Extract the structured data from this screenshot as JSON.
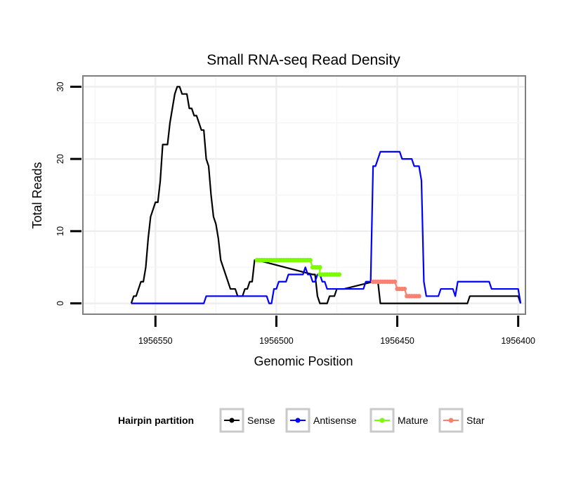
{
  "chart_data": {
    "type": "line",
    "title": "Small RNA-seq Read Density",
    "xlabel": "Genomic Position",
    "ylabel": "Total Reads",
    "xlim": [
      1956580,
      1956397
    ],
    "x_reversed": true,
    "ylim": [
      -1.5,
      31.5
    ],
    "x_ticks": [
      1956550,
      1956500,
      1956450,
      1956400
    ],
    "x_tick_labels": [
      "1956550",
      "1956500",
      "1956450",
      "1956400"
    ],
    "y_ticks": [
      0,
      10,
      20,
      30
    ],
    "y_tick_labels": [
      "0",
      "10",
      "20",
      "30"
    ],
    "grid": true,
    "legend": {
      "title": "Hairpin partition",
      "position": "bottom",
      "entries": [
        {
          "label": "Sense",
          "color": "#000000"
        },
        {
          "label": "Antisense",
          "color": "#0000ff"
        },
        {
          "label": "Mature",
          "color": "#7cfc00"
        },
        {
          "label": "Star",
          "color": "#fa8072"
        }
      ]
    },
    "series": [
      {
        "name": "Sense",
        "color": "#000000",
        "style": "line",
        "points": [
          [
            1956560,
            0
          ],
          [
            1956559,
            1
          ],
          [
            1956558,
            1
          ],
          [
            1956557,
            2
          ],
          [
            1956556,
            3
          ],
          [
            1956555,
            3
          ],
          [
            1956554,
            5
          ],
          [
            1956553,
            9
          ],
          [
            1956552,
            12
          ],
          [
            1956551,
            13
          ],
          [
            1956550,
            14
          ],
          [
            1956549,
            14
          ],
          [
            1956548,
            17
          ],
          [
            1956547,
            22
          ],
          [
            1956546,
            22
          ],
          [
            1956545,
            22
          ],
          [
            1956544,
            25
          ],
          [
            1956543,
            27
          ],
          [
            1956542,
            29
          ],
          [
            1956541,
            30
          ],
          [
            1956540,
            30
          ],
          [
            1956539,
            29
          ],
          [
            1956538,
            29
          ],
          [
            1956537,
            29
          ],
          [
            1956536,
            27
          ],
          [
            1956535,
            27
          ],
          [
            1956534,
            26
          ],
          [
            1956533,
            26
          ],
          [
            1956532,
            25
          ],
          [
            1956531,
            24
          ],
          [
            1956530,
            24
          ],
          [
            1956529,
            20
          ],
          [
            1956528,
            19
          ],
          [
            1956527,
            15
          ],
          [
            1956526,
            12
          ],
          [
            1956525,
            11
          ],
          [
            1956524,
            9
          ],
          [
            1956523,
            6
          ],
          [
            1956522,
            5
          ],
          [
            1956521,
            4
          ],
          [
            1956520,
            3
          ],
          [
            1956519,
            2
          ],
          [
            1956518,
            2
          ],
          [
            1956517,
            2
          ],
          [
            1956516,
            1
          ],
          [
            1956515,
            1
          ],
          [
            1956514,
            1
          ],
          [
            1956513,
            2
          ],
          [
            1956512,
            2
          ],
          [
            1956511,
            3
          ],
          [
            1956510,
            3
          ],
          [
            1956509,
            6
          ],
          [
            1956508,
            6
          ],
          [
            1956485,
            4
          ],
          [
            1956484,
            4
          ],
          [
            1956483,
            1
          ],
          [
            1956482,
            0
          ],
          [
            1956481,
            0
          ],
          [
            1956480,
            0
          ],
          [
            1956479,
            0
          ],
          [
            1956478,
            1
          ],
          [
            1956477,
            1
          ],
          [
            1956476,
            1
          ],
          [
            1956475,
            2
          ],
          [
            1956474,
            2
          ],
          [
            1956473,
            2
          ],
          [
            1956472,
            2
          ],
          [
            1956460,
            3
          ],
          [
            1956459,
            3
          ],
          [
            1956458,
            3
          ],
          [
            1956457,
            0
          ],
          [
            1956456,
            0
          ],
          [
            1956436,
            0
          ],
          [
            1956435,
            0
          ],
          [
            1956434,
            0
          ],
          [
            1956433,
            0
          ],
          [
            1956432,
            0
          ],
          [
            1956431,
            0
          ],
          [
            1956430,
            0
          ],
          [
            1956429,
            0
          ],
          [
            1956428,
            0
          ],
          [
            1956427,
            0
          ],
          [
            1956426,
            0
          ],
          [
            1956425,
            0
          ],
          [
            1956424,
            0
          ],
          [
            1956423,
            0
          ],
          [
            1956422,
            0
          ],
          [
            1956421,
            0
          ],
          [
            1956420,
            1
          ],
          [
            1956419,
            1
          ],
          [
            1956418,
            1
          ],
          [
            1956417,
            1
          ],
          [
            1956410,
            1
          ],
          [
            1956404,
            1
          ],
          [
            1956403,
            1
          ],
          [
            1956402,
            1
          ],
          [
            1956401,
            1
          ],
          [
            1956400,
            1
          ],
          [
            1956399,
            0
          ]
        ]
      },
      {
        "name": "Antisense",
        "color": "#0000ff",
        "style": "line",
        "points": [
          [
            1956560,
            0
          ],
          [
            1956530,
            0
          ],
          [
            1956529,
            1
          ],
          [
            1956505,
            1
          ],
          [
            1956504,
            1
          ],
          [
            1956503,
            0
          ],
          [
            1956502,
            0
          ],
          [
            1956501,
            2
          ],
          [
            1956500,
            2
          ],
          [
            1956499,
            3
          ],
          [
            1956498,
            3
          ],
          [
            1956497,
            3
          ],
          [
            1956496,
            3
          ],
          [
            1956495,
            4
          ],
          [
            1956494,
            4
          ],
          [
            1956493,
            4
          ],
          [
            1956490,
            4
          ],
          [
            1956489,
            4
          ],
          [
            1956488,
            5
          ],
          [
            1956487,
            4
          ],
          [
            1956486,
            4
          ],
          [
            1956485,
            3
          ],
          [
            1956484,
            3
          ],
          [
            1956483,
            4
          ],
          [
            1956482,
            4
          ],
          [
            1956481,
            3
          ],
          [
            1956480,
            3
          ],
          [
            1956479,
            2
          ],
          [
            1956478,
            2
          ],
          [
            1956477,
            2
          ],
          [
            1956476,
            2
          ],
          [
            1956475,
            2
          ],
          [
            1956474,
            2
          ],
          [
            1956473,
            2
          ],
          [
            1956465,
            2
          ],
          [
            1956464,
            2
          ],
          [
            1956463,
            3
          ],
          [
            1956462,
            3
          ],
          [
            1956461,
            3
          ],
          [
            1956460,
            19
          ],
          [
            1956459,
            19
          ],
          [
            1956458,
            20
          ],
          [
            1956457,
            21
          ],
          [
            1956456,
            21
          ],
          [
            1956455,
            21
          ],
          [
            1956454,
            21
          ],
          [
            1956453,
            21
          ],
          [
            1956452,
            21
          ],
          [
            1956451,
            21
          ],
          [
            1956450,
            21
          ],
          [
            1956449,
            21
          ],
          [
            1956448,
            20
          ],
          [
            1956447,
            20
          ],
          [
            1956446,
            20
          ],
          [
            1956445,
            20
          ],
          [
            1956444,
            20
          ],
          [
            1956443,
            19
          ],
          [
            1956442,
            19
          ],
          [
            1956441,
            19
          ],
          [
            1956440,
            17
          ],
          [
            1956439,
            3
          ],
          [
            1956438,
            1
          ],
          [
            1956437,
            1
          ],
          [
            1956436,
            1
          ],
          [
            1956435,
            1
          ],
          [
            1956434,
            1
          ],
          [
            1956433,
            1
          ],
          [
            1956432,
            2
          ],
          [
            1956431,
            2
          ],
          [
            1956430,
            2
          ],
          [
            1956429,
            2
          ],
          [
            1956428,
            2
          ],
          [
            1956427,
            2
          ],
          [
            1956426,
            1
          ],
          [
            1956425,
            3
          ],
          [
            1956424,
            3
          ],
          [
            1956423,
            3
          ],
          [
            1956422,
            3
          ],
          [
            1956421,
            3
          ],
          [
            1956420,
            3
          ],
          [
            1956419,
            3
          ],
          [
            1956418,
            3
          ],
          [
            1956417,
            3
          ],
          [
            1956416,
            3
          ],
          [
            1956415,
            3
          ],
          [
            1956414,
            3
          ],
          [
            1956413,
            3
          ],
          [
            1956412,
            3
          ],
          [
            1956411,
            2
          ],
          [
            1956410,
            2
          ],
          [
            1956409,
            2
          ],
          [
            1956408,
            2
          ],
          [
            1956407,
            2
          ],
          [
            1956406,
            2
          ],
          [
            1956405,
            2
          ],
          [
            1956404,
            2
          ],
          [
            1956403,
            2
          ],
          [
            1956402,
            2
          ],
          [
            1956401,
            2
          ],
          [
            1956400,
            2
          ],
          [
            1956399,
            0
          ]
        ]
      },
      {
        "name": "Mature",
        "color": "#7cfc00",
        "style": "line+points",
        "points": [
          [
            1956508,
            6
          ],
          [
            1956507,
            6
          ],
          [
            1956506,
            6
          ],
          [
            1956505,
            6
          ],
          [
            1956504,
            6
          ],
          [
            1956503,
            6
          ],
          [
            1956502,
            6
          ],
          [
            1956501,
            6
          ],
          [
            1956500,
            6
          ],
          [
            1956499,
            6
          ],
          [
            1956498,
            6
          ],
          [
            1956497,
            6
          ],
          [
            1956496,
            6
          ],
          [
            1956495,
            6
          ],
          [
            1956494,
            6
          ],
          [
            1956493,
            6
          ],
          [
            1956492,
            6
          ],
          [
            1956491,
            6
          ],
          [
            1956490,
            6
          ],
          [
            1956489,
            6
          ],
          [
            1956488,
            6
          ],
          [
            1956487,
            6
          ],
          [
            1956486,
            6
          ],
          [
            1956485,
            5
          ],
          [
            1956484,
            5
          ],
          [
            1956483,
            5
          ],
          [
            1956482,
            5
          ],
          [
            1956482,
            4
          ],
          [
            1956481,
            4
          ],
          [
            1956480,
            4
          ],
          [
            1956479,
            4
          ],
          [
            1956478,
            4
          ],
          [
            1956477,
            4
          ],
          [
            1956476,
            4
          ],
          [
            1956475,
            4
          ],
          [
            1956474,
            4
          ]
        ]
      },
      {
        "name": "Star",
        "color": "#fa8072",
        "style": "line+points",
        "points": [
          [
            1956460,
            3
          ],
          [
            1956459,
            3
          ],
          [
            1956458,
            3
          ],
          [
            1956457,
            3
          ],
          [
            1956456,
            3
          ],
          [
            1956455,
            3
          ],
          [
            1956454,
            3
          ],
          [
            1956453,
            3
          ],
          [
            1956452,
            3
          ],
          [
            1956451,
            3
          ],
          [
            1956450,
            2
          ],
          [
            1956449,
            2
          ],
          [
            1956448,
            2
          ],
          [
            1956447,
            2
          ],
          [
            1956446,
            1
          ],
          [
            1956445,
            1
          ],
          [
            1956444,
            1
          ],
          [
            1956443,
            1
          ],
          [
            1956442,
            1
          ],
          [
            1956441,
            1
          ]
        ]
      }
    ]
  }
}
